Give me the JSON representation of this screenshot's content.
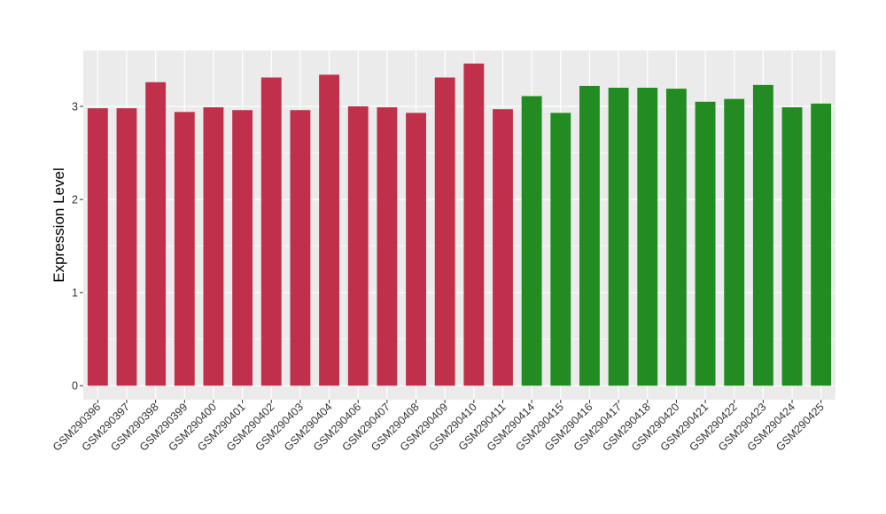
{
  "chart_data": {
    "type": "bar",
    "title": "",
    "xlabel": "",
    "ylabel": "Expression Level",
    "ylim": [
      -0.15,
      3.6
    ],
    "yticks": [
      0,
      1,
      2,
      3
    ],
    "grid": true,
    "legend": "none",
    "colors": {
      "group1": "#C0304A",
      "group2": "#228B22",
      "panel_background": "#EBEBEB",
      "gridline": "#FFFFFF"
    },
    "categories": [
      "GSM290396",
      "GSM290397",
      "GSM290398",
      "GSM290399",
      "GSM290400",
      "GSM290401",
      "GSM290402",
      "GSM290403",
      "GSM290404",
      "GSM290406",
      "GSM290407",
      "GSM290408",
      "GSM290409",
      "GSM290410",
      "GSM290411",
      "GSM290414",
      "GSM290415",
      "GSM290416",
      "GSM290417",
      "GSM290418",
      "GSM290420",
      "GSM290421",
      "GSM290422",
      "GSM290423",
      "GSM290424",
      "GSM290425"
    ],
    "values": [
      2.98,
      2.98,
      3.26,
      2.94,
      2.99,
      2.96,
      3.31,
      2.96,
      3.34,
      3.0,
      2.99,
      2.93,
      3.31,
      3.46,
      2.97,
      3.11,
      2.93,
      3.22,
      3.2,
      3.2,
      3.19,
      3.05,
      3.08,
      3.23,
      2.99,
      3.03
    ],
    "groups": [
      "group1",
      "group1",
      "group1",
      "group1",
      "group1",
      "group1",
      "group1",
      "group1",
      "group1",
      "group1",
      "group1",
      "group1",
      "group1",
      "group1",
      "group1",
      "group2",
      "group2",
      "group2",
      "group2",
      "group2",
      "group2",
      "group2",
      "group2",
      "group2",
      "group2",
      "group2"
    ]
  }
}
